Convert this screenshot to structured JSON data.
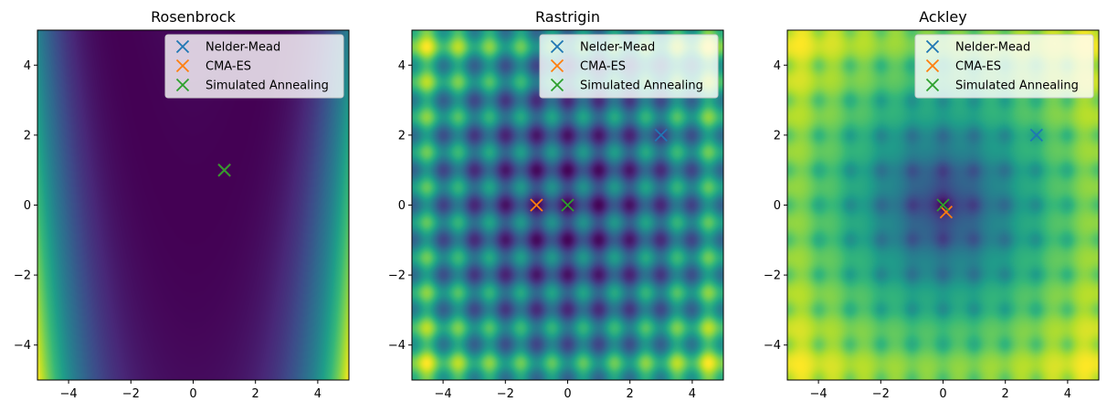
{
  "chart_data": [
    {
      "type": "heatmap",
      "title": "Rosenbrock",
      "function": "rosenbrock",
      "xlim": [
        -5,
        5
      ],
      "ylim": [
        -5,
        5
      ],
      "xticks": [
        -4,
        -2,
        0,
        2,
        4
      ],
      "yticks": [
        -4,
        -2,
        0,
        2,
        4
      ],
      "xticklabels": [
        "−4",
        "−2",
        "0",
        "2",
        "4"
      ],
      "yticklabels": [
        "−4",
        "−2",
        "0",
        "2",
        "4"
      ],
      "colormap": "viridis",
      "legend_position": "top-right",
      "series": [
        {
          "name": "Nelder-Mead",
          "color": "#1f77b4",
          "x": 1.0,
          "y": 1.0
        },
        {
          "name": "CMA-ES",
          "color": "#ff7f0e",
          "x": 1.0,
          "y": 1.0
        },
        {
          "name": "Simulated Annealing",
          "color": "#2ca02c",
          "x": 1.0,
          "y": 1.0
        }
      ]
    },
    {
      "type": "heatmap",
      "title": "Rastrigin",
      "function": "rastrigin",
      "xlim": [
        -5,
        5
      ],
      "ylim": [
        -5,
        5
      ],
      "xticks": [
        -4,
        -2,
        0,
        2,
        4
      ],
      "yticks": [
        -4,
        -2,
        0,
        2,
        4
      ],
      "xticklabels": [
        "−4",
        "−2",
        "0",
        "2",
        "4"
      ],
      "yticklabels": [
        "−4",
        "−2",
        "0",
        "2",
        "4"
      ],
      "colormap": "viridis",
      "legend_position": "top-right",
      "series": [
        {
          "name": "Nelder-Mead",
          "color": "#1f77b4",
          "x": 3.0,
          "y": 2.0
        },
        {
          "name": "CMA-ES",
          "color": "#ff7f0e",
          "x": -1.0,
          "y": 0.0
        },
        {
          "name": "Simulated Annealing",
          "color": "#2ca02c",
          "x": 0.0,
          "y": 0.0
        }
      ]
    },
    {
      "type": "heatmap",
      "title": "Ackley",
      "function": "ackley",
      "xlim": [
        -5,
        5
      ],
      "ylim": [
        -5,
        5
      ],
      "xticks": [
        -4,
        -2,
        0,
        2,
        4
      ],
      "yticks": [
        -4,
        -2,
        0,
        2,
        4
      ],
      "xticklabels": [
        "−4",
        "−2",
        "0",
        "2",
        "4"
      ],
      "yticklabels": [
        "−4",
        "−2",
        "0",
        "2",
        "4"
      ],
      "colormap": "viridis",
      "legend_position": "top-right",
      "series": [
        {
          "name": "Nelder-Mead",
          "color": "#1f77b4",
          "x": 3.0,
          "y": 2.0
        },
        {
          "name": "CMA-ES",
          "color": "#ff7f0e",
          "x": 0.1,
          "y": -0.2
        },
        {
          "name": "Simulated Annealing",
          "color": "#2ca02c",
          "x": 0.0,
          "y": 0.0
        }
      ]
    }
  ]
}
